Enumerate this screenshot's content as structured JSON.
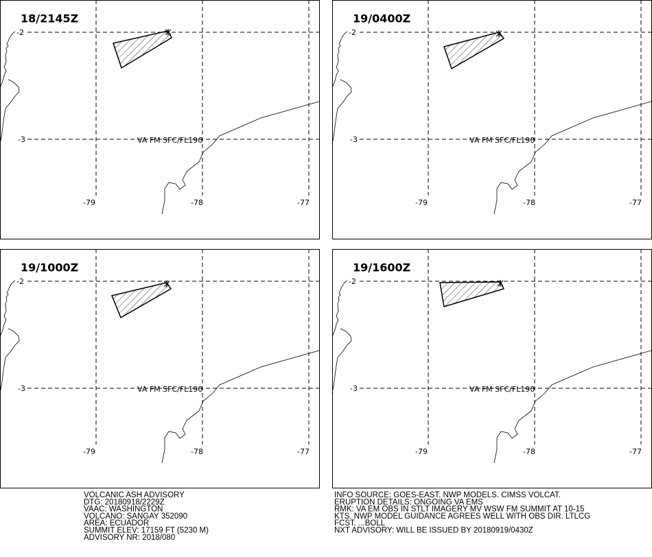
{
  "panels": [
    {
      "time": "18/2145Z"
    },
    {
      "time": "19/0400Z"
    },
    {
      "time": "19/1000Z"
    },
    {
      "time": "19/1600Z"
    }
  ],
  "cloud_label": "VA FM SFC/FL190",
  "lat_labels": [
    "-2",
    "-3"
  ],
  "lon_labels": [
    "-79",
    "-78",
    "-77"
  ],
  "advisory_left": [
    "VOLCANIC ASH ADVISORY",
    "DTG: 20180918/2229Z",
    "VAAC: WASHINGTON",
    "VOLCANO: SANGAY 352090",
    "AREA: ECUADOR",
    "SUMMIT ELEV: 17159 FT (5230 M)",
    "ADVISORY NR: 2018/080"
  ],
  "advisory_right": [
    "INFO SOURCE: GOES-EAST. NWP MODELS. CIMSS VOLCAT.",
    "ERUPTION DETAILS: ONGOING VA EMS",
    "RMK: VA EM OBS IN STLT IMAGERY MV WSW FM SUMMIT AT 10-15",
    "KTS. NWP MODEL GUIDANCE AGREES WELL WITH OBS DIR. LTLCG",
    "FCST. ...BOLL",
    "NXT ADVISORY: WILL BE ISSUED BY 20180919/0430Z"
  ]
}
